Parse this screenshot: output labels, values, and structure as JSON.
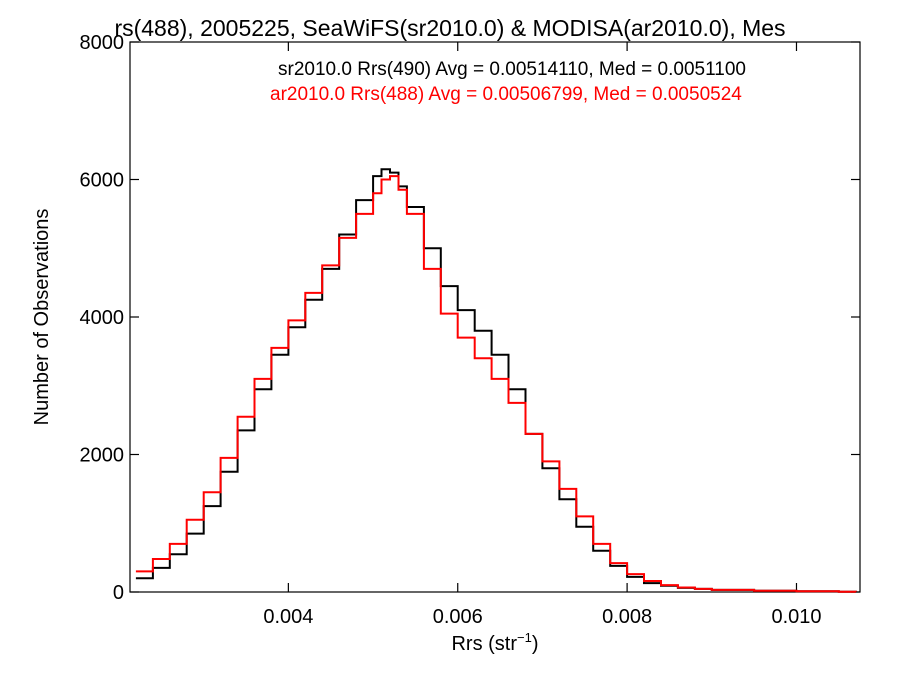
{
  "chart_data": {
    "type": "line",
    "step": true,
    "title": "rs(488), 2005225, SeaWiFS(sr2010.0) & MODISA(ar2010.0), Mes",
    "xlabel": {
      "main": "Rrs (str",
      "sup": "−1",
      "end": ")"
    },
    "ylabel": "Number of Observations",
    "xlim": [
      0.00213,
      0.01075
    ],
    "ylim": [
      0,
      8000
    ],
    "xticks": [
      {
        "value": 0.004,
        "label": "0.004"
      },
      {
        "value": 0.006,
        "label": "0.006"
      },
      {
        "value": 0.008,
        "label": "0.008"
      },
      {
        "value": 0.01,
        "label": "0.010"
      }
    ],
    "yticks": [
      {
        "value": 0,
        "label": "0"
      },
      {
        "value": 2000,
        "label": "2000"
      },
      {
        "value": 4000,
        "label": "4000"
      },
      {
        "value": 6000,
        "label": "6000"
      },
      {
        "value": 8000,
        "label": "8000"
      }
    ],
    "legend_position": "top",
    "series": [
      {
        "legend": "sr2010.0 Rrs(490) Avg = 0.00514110, Med = 0.0051100",
        "color": "#000000",
        "x": [
          0.0022,
          0.0024,
          0.0026,
          0.0028,
          0.003,
          0.0032,
          0.0034,
          0.0036,
          0.0038,
          0.004,
          0.0042,
          0.0044,
          0.0046,
          0.0048,
          0.005,
          0.0051,
          0.0052,
          0.0053,
          0.0054,
          0.0056,
          0.0058,
          0.006,
          0.0062,
          0.0064,
          0.0066,
          0.0068,
          0.007,
          0.0072,
          0.0074,
          0.0076,
          0.0078,
          0.008,
          0.0082,
          0.0084,
          0.0086,
          0.0088,
          0.009,
          0.0095,
          0.01,
          0.0105,
          0.0107
        ],
        "y": [
          200,
          350,
          550,
          850,
          1250,
          1750,
          2350,
          2950,
          3450,
          3850,
          4250,
          4700,
          5200,
          5700,
          6050,
          6150,
          6100,
          5900,
          5600,
          5000,
          4450,
          4100,
          3800,
          3450,
          2950,
          2300,
          1800,
          1350,
          950,
          600,
          380,
          220,
          130,
          90,
          60,
          45,
          30,
          18,
          10,
          5,
          3
        ]
      },
      {
        "legend": "ar2010.0 Rrs(488) Avg = 0.00506799, Med = 0.0050524",
        "color": "#ff0000",
        "x": [
          0.0022,
          0.0024,
          0.0026,
          0.0028,
          0.003,
          0.0032,
          0.0034,
          0.0036,
          0.0038,
          0.004,
          0.0042,
          0.0044,
          0.0046,
          0.0048,
          0.005,
          0.0051,
          0.0052,
          0.0053,
          0.0054,
          0.0056,
          0.0058,
          0.006,
          0.0062,
          0.0064,
          0.0066,
          0.0068,
          0.007,
          0.0072,
          0.0074,
          0.0076,
          0.0078,
          0.008,
          0.0082,
          0.0084,
          0.0086,
          0.0088,
          0.009,
          0.0095,
          0.01,
          0.0105,
          0.0107
        ],
        "y": [
          300,
          480,
          700,
          1050,
          1450,
          1950,
          2550,
          3100,
          3550,
          3950,
          4350,
          4750,
          5150,
          5500,
          5800,
          6000,
          6050,
          5850,
          5500,
          4700,
          4050,
          3700,
          3400,
          3100,
          2750,
          2300,
          1900,
          1500,
          1100,
          700,
          420,
          260,
          160,
          100,
          65,
          45,
          30,
          18,
          10,
          5,
          3
        ]
      }
    ]
  }
}
